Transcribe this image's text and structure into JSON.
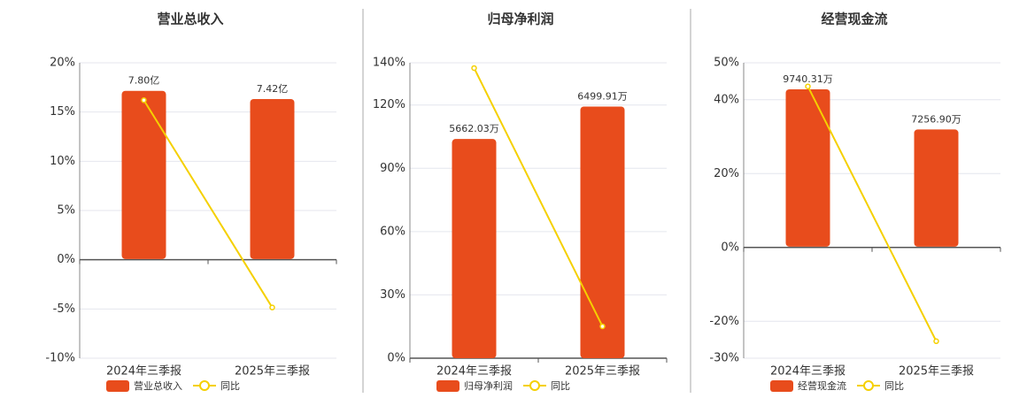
{
  "chart_data": [
    {
      "type": "combo",
      "title": "营业总收入",
      "categories": [
        "2024年三季报",
        "2025年三季报"
      ],
      "ylim": [
        -10,
        20
      ],
      "yticks": [
        {
          "value": -10,
          "label": "-10%"
        },
        {
          "value": -5,
          "label": "-5%"
        },
        {
          "value": 0,
          "label": "0%"
        },
        {
          "value": 5,
          "label": "5%"
        },
        {
          "value": 10,
          "label": "10%"
        },
        {
          "value": 15,
          "label": "15%"
        },
        {
          "value": 20,
          "label": "20%"
        }
      ],
      "y2lim": [
        -4.6,
        9.1
      ],
      "grid": true,
      "series": [
        {
          "name": "营业总收入",
          "kind": "bar",
          "axis": "y2",
          "color": "#e84c1c",
          "values": [
            7.8,
            7.42
          ],
          "value_labels": [
            "7.80亿",
            "7.42亿"
          ]
        },
        {
          "name": "同比",
          "kind": "line",
          "color": "#f5d000",
          "values": [
            16.2,
            -4.85
          ]
        }
      ]
    },
    {
      "type": "combo",
      "title": "归母净利润",
      "categories": [
        "2024年三季报",
        "2025年三季报"
      ],
      "ylim": [
        0,
        140
      ],
      "yticks": [
        {
          "value": 0,
          "label": "0%"
        },
        {
          "value": 30,
          "label": "30%"
        },
        {
          "value": 60,
          "label": "60%"
        },
        {
          "value": 90,
          "label": "90%"
        },
        {
          "value": 120,
          "label": "120%"
        },
        {
          "value": 140,
          "label": "140%"
        }
      ],
      "y2lim": [
        0,
        7630
      ],
      "grid": true,
      "series": [
        {
          "name": "归母净利润",
          "kind": "bar",
          "axis": "y2",
          "color": "#e84c1c",
          "values": [
            5662.03,
            6499.91
          ],
          "value_labels": [
            "5662.03万",
            "6499.91万"
          ]
        },
        {
          "name": "同比",
          "kind": "line",
          "color": "#f5d000",
          "values": [
            137.5,
            15.1
          ]
        }
      ]
    },
    {
      "type": "combo",
      "title": "经营现金流",
      "categories": [
        "2024年三季报",
        "2025年三季报"
      ],
      "ylim": [
        -30,
        50
      ],
      "yticks": [
        {
          "value": -30,
          "label": "-30%"
        },
        {
          "value": -20,
          "label": "-20%"
        },
        {
          "value": 0,
          "label": "0%"
        },
        {
          "value": 20,
          "label": "20%"
        },
        {
          "value": 40,
          "label": "40%"
        },
        {
          "value": 50,
          "label": "50%"
        }
      ],
      "y2lim": [
        -6900,
        11380
      ],
      "grid": true,
      "series": [
        {
          "name": "经营现金流",
          "kind": "bar",
          "axis": "y2",
          "color": "#e84c1c",
          "values": [
            9740.31,
            7256.9
          ],
          "value_labels": [
            "9740.31万",
            "7256.90万"
          ]
        },
        {
          "name": "同比",
          "kind": "line",
          "color": "#f5d000",
          "values": [
            43.6,
            -25.4
          ]
        }
      ]
    }
  ]
}
